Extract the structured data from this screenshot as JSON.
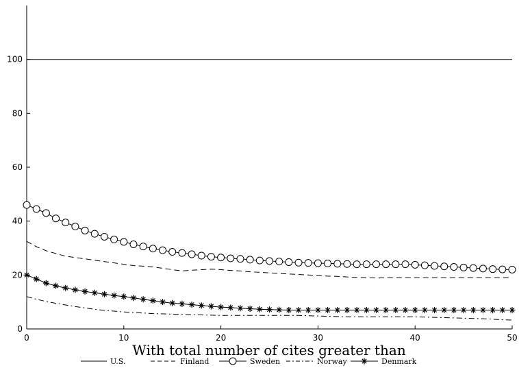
{
  "chart_data": {
    "type": "line",
    "xlabel": "With total number of cites greater than",
    "ylabel": "",
    "xlim": [
      0,
      50
    ],
    "ylim": [
      0,
      120
    ],
    "x_ticks": [
      0,
      10,
      20,
      30,
      40,
      50
    ],
    "y_ticks": [
      0,
      20,
      40,
      60,
      80,
      100
    ],
    "grid": false,
    "legend_position": "bottom",
    "x": [
      0,
      1,
      2,
      3,
      4,
      5,
      6,
      7,
      8,
      9,
      10,
      11,
      12,
      13,
      14,
      15,
      16,
      17,
      18,
      19,
      20,
      21,
      22,
      23,
      24,
      25,
      26,
      27,
      28,
      29,
      30,
      31,
      32,
      33,
      34,
      35,
      36,
      37,
      38,
      39,
      40,
      41,
      42,
      43,
      44,
      45,
      46,
      47,
      48,
      49,
      50
    ],
    "series": [
      {
        "name": "U.S.",
        "style": "solid",
        "marker": "none",
        "values": [
          100,
          100,
          100,
          100,
          100,
          100,
          100,
          100,
          100,
          100,
          100,
          100,
          100,
          100,
          100,
          100,
          100,
          100,
          100,
          100,
          100,
          100,
          100,
          100,
          100,
          100,
          100,
          100,
          100,
          100,
          100,
          100,
          100,
          100,
          100,
          100,
          100,
          100,
          100,
          100,
          100,
          100,
          100,
          100,
          100,
          100,
          100,
          100,
          100,
          100,
          100
        ]
      },
      {
        "name": "Finland",
        "style": "dashed",
        "marker": "none",
        "values": [
          32.5,
          30.5,
          29,
          28,
          27,
          26.5,
          26,
          25.5,
          25,
          24.5,
          24,
          23.5,
          23.3,
          23,
          22.5,
          22,
          21.5,
          21.8,
          22,
          22.2,
          22,
          21.7,
          21.5,
          21.2,
          21,
          20.8,
          20.6,
          20.4,
          20.2,
          20,
          19.8,
          19.6,
          19.5,
          19.3,
          19.1,
          19,
          18.9,
          19,
          19,
          19,
          19,
          19,
          19,
          19,
          19,
          19,
          19,
          19,
          19,
          19,
          19
        ]
      },
      {
        "name": "Sweden",
        "style": "solid",
        "marker": "circle",
        "values": [
          46,
          44.5,
          43,
          41,
          39.5,
          38,
          36.5,
          35.3,
          34.2,
          33.2,
          32.3,
          31.4,
          30.6,
          29.8,
          29.2,
          28.6,
          28.2,
          27.7,
          27.2,
          26.8,
          26.5,
          26.2,
          26,
          25.7,
          25.4,
          25.2,
          25,
          24.8,
          24.6,
          24.5,
          24.4,
          24.3,
          24.2,
          24.1,
          24,
          24,
          24,
          24,
          24,
          24,
          23.8,
          23.6,
          23.4,
          23.2,
          23,
          22.8,
          22.6,
          22.4,
          22.2,
          22.1,
          22
        ]
      },
      {
        "name": "Norway",
        "style": "dashdot",
        "marker": "none",
        "values": [
          12,
          11,
          10.2,
          9.5,
          8.9,
          8.3,
          7.8,
          7.3,
          6.9,
          6.6,
          6.3,
          6.1,
          5.9,
          5.7,
          5.6,
          5.5,
          5.4,
          5.3,
          5.2,
          5.1,
          5,
          5,
          5,
          5,
          5,
          5,
          5,
          5,
          5,
          4.9,
          4.8,
          4.7,
          4.6,
          4.5,
          4.5,
          4.5,
          4.5,
          4.5,
          4.5,
          4.5,
          4.5,
          4.4,
          4.3,
          4.2,
          4.1,
          4,
          3.9,
          3.8,
          3.6,
          3.4,
          3.3
        ]
      },
      {
        "name": "Denmark",
        "style": "solid",
        "marker": "star",
        "values": [
          20,
          18.5,
          17,
          16,
          15.2,
          14.5,
          13.9,
          13.4,
          12.9,
          12.4,
          12,
          11.5,
          11,
          10.5,
          10,
          9.6,
          9.3,
          9,
          8.7,
          8.4,
          8.1,
          7.9,
          7.7,
          7.5,
          7.3,
          7.2,
          7.1,
          7,
          7,
          7,
          7,
          7,
          7,
          7,
          7,
          7,
          7,
          7,
          7,
          7,
          7,
          7,
          7,
          7,
          7,
          7,
          7,
          7,
          7,
          7,
          7
        ]
      }
    ]
  }
}
